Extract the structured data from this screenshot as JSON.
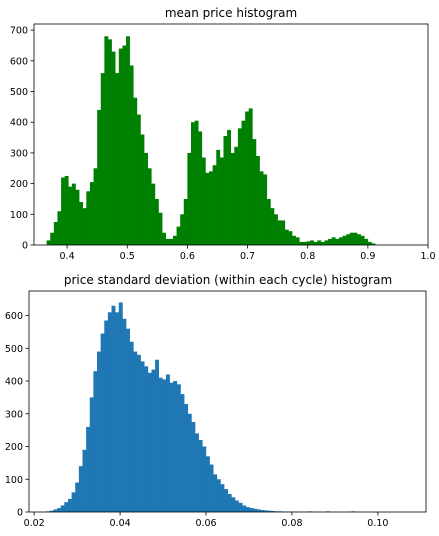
{
  "chart_data": [
    {
      "type": "bar",
      "title": "mean price histogram",
      "xlabel": "",
      "ylabel": "",
      "color": "#008000",
      "xlim": [
        0.345,
        1.0
      ],
      "ylim": [
        0,
        720
      ],
      "x_ticks": [
        0.4,
        0.5,
        0.6,
        0.7,
        0.8,
        0.9,
        1.0
      ],
      "x_tick_labels": [
        "0.4",
        "0.5",
        "0.6",
        "0.7",
        "0.8",
        "0.9",
        "1.0"
      ],
      "y_ticks": [
        0,
        100,
        200,
        300,
        400,
        500,
        600,
        700
      ],
      "y_tick_labels": [
        "0",
        "100",
        "200",
        "300",
        "400",
        "500",
        "600",
        "700"
      ],
      "bin_start": 0.366,
      "bin_width": 0.006,
      "values": [
        15,
        40,
        75,
        110,
        220,
        225,
        190,
        200,
        180,
        140,
        120,
        175,
        205,
        250,
        440,
        560,
        680,
        670,
        630,
        560,
        640,
        650,
        680,
        585,
        480,
        425,
        360,
        300,
        250,
        200,
        150,
        105,
        40,
        20,
        20,
        30,
        60,
        100,
        150,
        300,
        400,
        405,
        370,
        285,
        235,
        240,
        260,
        310,
        285,
        355,
        375,
        300,
        320,
        380,
        405,
        435,
        445,
        345,
        290,
        240,
        230,
        150,
        120,
        100,
        80,
        80,
        50,
        45,
        30,
        25,
        10,
        10,
        12,
        15,
        10,
        15,
        10,
        15,
        20,
        25,
        20,
        25,
        30,
        35,
        40,
        40,
        35,
        30,
        20,
        10,
        5
      ]
    },
    {
      "type": "bar",
      "title": "price standard deviation (within each cycle) histogram",
      "xlabel": "",
      "ylabel": "",
      "color": "#1f77b4",
      "xlim": [
        0.0188,
        0.1112
      ],
      "ylim": [
        0,
        675
      ],
      "x_ticks": [
        0.02,
        0.04,
        0.06,
        0.08,
        0.1
      ],
      "x_tick_labels": [
        "0.02",
        "0.04",
        "0.06",
        "0.08",
        "0.10"
      ],
      "y_ticks": [
        0,
        100,
        200,
        300,
        400,
        500,
        600
      ],
      "y_tick_labels": [
        "0",
        "100",
        "200",
        "300",
        "400",
        "500",
        "600"
      ],
      "bin_start": 0.0228,
      "bin_width": 0.000845,
      "values": [
        2,
        4,
        8,
        12,
        20,
        30,
        40,
        60,
        90,
        140,
        190,
        260,
        350,
        430,
        490,
        545,
        585,
        610,
        630,
        610,
        640,
        590,
        560,
        520,
        490,
        480,
        460,
        445,
        425,
        435,
        465,
        410,
        405,
        420,
        395,
        400,
        390,
        360,
        330,
        300,
        275,
        240,
        220,
        200,
        170,
        145,
        115,
        100,
        85,
        70,
        55,
        45,
        35,
        28,
        20,
        15,
        12,
        10,
        8,
        6,
        5,
        4,
        3,
        2,
        2,
        1,
        1,
        1,
        1,
        1,
        0,
        0,
        2,
        1,
        0,
        0,
        0,
        2,
        0,
        0,
        0,
        0,
        0,
        0,
        2,
        0,
        0,
        0,
        0,
        0,
        0,
        0,
        0,
        0,
        0
      ]
    }
  ]
}
